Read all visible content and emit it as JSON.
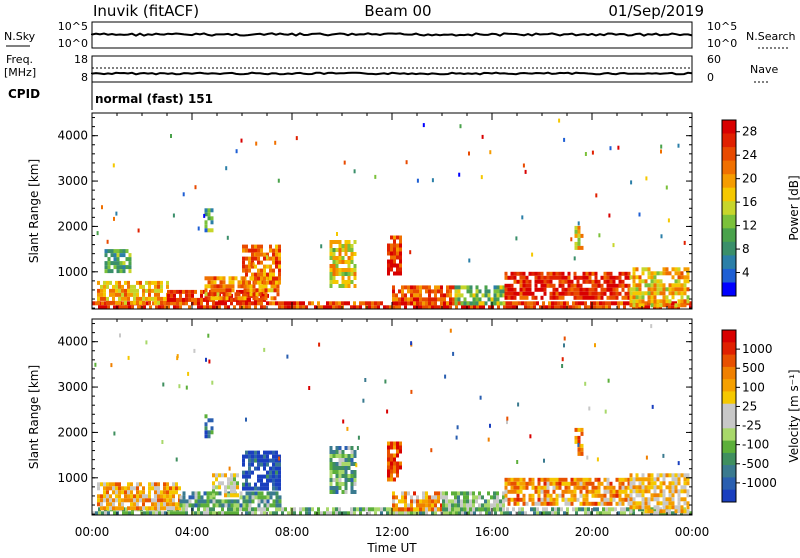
{
  "header": {
    "station": "Inuvik (fitACF)",
    "beam": "Beam 00",
    "date": "01/Sep/2019"
  },
  "top_panels": {
    "nsky_label": "N.Sky",
    "nsearch_label": "N.Search",
    "noise_ticks": [
      "10^5",
      "10^0"
    ],
    "freq_label_line1": "Freq.",
    "freq_label_line2": "[MHz]",
    "freq_ticks": [
      "18",
      "8"
    ],
    "nave_label": "Nave",
    "nave_ticks": [
      "60",
      "0"
    ],
    "cpid_label": "CPID",
    "cpid_text": "normal (fast) 151"
  },
  "xaxis": {
    "ticks": [
      "00:00",
      "04:00",
      "08:00",
      "12:00",
      "16:00",
      "20:00",
      "00:00"
    ],
    "label": "Time UT"
  },
  "chart_data": [
    {
      "type": "heatmap",
      "name": "Power",
      "ylabel": "Slant Range [km]",
      "ylim": [
        180,
        4500
      ],
      "yticks": [
        "1000",
        "2000",
        "3000",
        "4000"
      ],
      "xlim_hours": [
        0,
        24
      ],
      "colorbar": {
        "label": "Power [dB]",
        "ticks": [
          "4",
          "8",
          "12",
          "16",
          "20",
          "24",
          "28"
        ],
        "range": [
          0,
          30
        ],
        "colors": [
          "#0000ff",
          "#1e5fd4",
          "#2b7fa8",
          "#3a8f6a",
          "#49a24b",
          "#7bc13a",
          "#c7d62b",
          "#f5c800",
          "#f59c00",
          "#f07000",
          "#e84a00",
          "#e02000",
          "#d80000"
        ]
      },
      "regions": [
        {
          "t0": 0.0,
          "t1": 24.0,
          "r0": 180,
          "r1": 350,
          "level": 0.85
        },
        {
          "t0": 0.2,
          "t1": 3.0,
          "r0": 350,
          "r1": 800,
          "level": 0.65
        },
        {
          "t0": 3.0,
          "t1": 7.0,
          "r0": 350,
          "r1": 600,
          "level": 0.9
        },
        {
          "t0": 4.5,
          "t1": 7.5,
          "r0": 400,
          "r1": 900,
          "level": 0.7
        },
        {
          "t0": 6.0,
          "t1": 7.5,
          "r0": 800,
          "r1": 1600,
          "level": 0.75
        },
        {
          "t0": 9.5,
          "t1": 10.5,
          "r0": 700,
          "r1": 1700,
          "level": 0.55
        },
        {
          "t0": 11.8,
          "t1": 12.3,
          "r0": 1000,
          "r1": 1800,
          "level": 0.85
        },
        {
          "t0": 12.0,
          "t1": 14.5,
          "r0": 300,
          "r1": 700,
          "level": 0.8
        },
        {
          "t0": 14.5,
          "t1": 16.5,
          "r0": 300,
          "r1": 700,
          "level": 0.4
        },
        {
          "t0": 16.5,
          "t1": 21.5,
          "r0": 400,
          "r1": 1000,
          "level": 0.9
        },
        {
          "t0": 21.5,
          "t1": 23.8,
          "r0": 300,
          "r1": 1100,
          "level": 0.6
        },
        {
          "t0": 0.5,
          "t1": 1.5,
          "r0": 1000,
          "r1": 1500,
          "level": 0.35
        },
        {
          "t0": 4.5,
          "t1": 4.8,
          "r0": 1900,
          "r1": 2400,
          "level": 0.3
        },
        {
          "t0": 19.3,
          "t1": 19.6,
          "r0": 1500,
          "r1": 2100,
          "level": 0.6
        }
      ]
    },
    {
      "type": "heatmap",
      "name": "Velocity",
      "ylabel": "Slant Range [km]",
      "ylim": [
        180,
        4500
      ],
      "yticks": [
        "1000",
        "2000",
        "3000",
        "4000"
      ],
      "xlim_hours": [
        0,
        24
      ],
      "colorbar": {
        "label": "Velocity [m s⁻¹]",
        "ticks": [
          "1000",
          "500",
          "100",
          "25",
          "-25",
          "-100",
          "-500",
          "-1000"
        ],
        "range": [
          -1000,
          1000
        ],
        "colors": [
          "#1a3fbf",
          "#2a5fb0",
          "#3a7a8f",
          "#3f8f5f",
          "#5caf3a",
          "#a8d86a",
          "#c8c8c8",
          "#c8c8c8",
          "#f5c800",
          "#f5a000",
          "#f08000",
          "#e85000",
          "#e02000",
          "#d80000"
        ]
      },
      "regions": [
        {
          "t0": 0.0,
          "t1": 24.0,
          "r0": 180,
          "r1": 350,
          "level": 0.35
        },
        {
          "t0": 0.2,
          "t1": 3.5,
          "r0": 350,
          "r1": 900,
          "level": 0.65
        },
        {
          "t0": 3.5,
          "t1": 7.5,
          "r0": 350,
          "r1": 700,
          "level": 0.3
        },
        {
          "t0": 4.8,
          "t1": 5.8,
          "r0": 600,
          "r1": 1100,
          "level": 0.5
        },
        {
          "t0": 6.0,
          "t1": 7.5,
          "r0": 800,
          "r1": 1600,
          "level": 0.05
        },
        {
          "t0": 9.5,
          "t1": 10.5,
          "r0": 700,
          "r1": 1700,
          "level": 0.3
        },
        {
          "t0": 11.8,
          "t1": 12.3,
          "r0": 1000,
          "r1": 1800,
          "level": 0.85
        },
        {
          "t0": 12.0,
          "t1": 14.0,
          "r0": 300,
          "r1": 700,
          "level": 0.7
        },
        {
          "t0": 14.0,
          "t1": 16.5,
          "r0": 300,
          "r1": 700,
          "level": 0.35
        },
        {
          "t0": 16.5,
          "t1": 21.5,
          "r0": 400,
          "r1": 1000,
          "level": 0.7
        },
        {
          "t0": 21.5,
          "t1": 23.8,
          "r0": 300,
          "r1": 1100,
          "level": 0.6
        },
        {
          "t0": 4.5,
          "t1": 4.8,
          "r0": 1900,
          "r1": 2400,
          "level": 0.15
        },
        {
          "t0": 19.3,
          "t1": 19.6,
          "r0": 1500,
          "r1": 2100,
          "level": 0.75
        }
      ]
    }
  ]
}
